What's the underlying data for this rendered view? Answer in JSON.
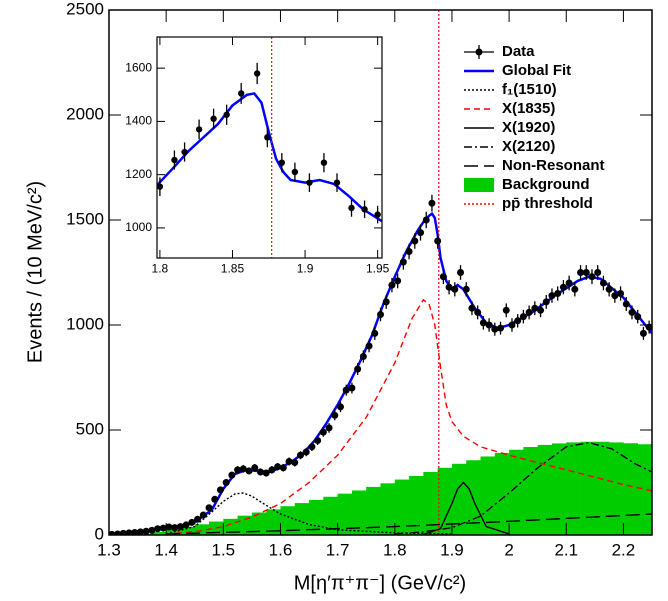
{
  "chart_data": [
    {
      "type": "line",
      "xlabel": "M[η′π⁺π⁻] (GeV/c²)",
      "ylabel": "Events / (10 MeV/c²)",
      "xlim": [
        1.3,
        2.25
      ],
      "ylim": [
        0,
        2500
      ],
      "xticks": [
        1.3,
        1.4,
        1.5,
        1.6,
        1.7,
        1.8,
        1.9,
        2,
        2.1,
        2.2
      ],
      "yticks": [
        0,
        500,
        1000,
        1500,
        2000,
        2500
      ],
      "legend": "upper right",
      "series": [
        {
          "name": "Data",
          "mark": "points",
          "color": "#000000",
          "x": [
            1.305,
            1.315,
            1.325,
            1.335,
            1.345,
            1.355,
            1.365,
            1.375,
            1.385,
            1.395,
            1.405,
            1.415,
            1.425,
            1.435,
            1.445,
            1.455,
            1.465,
            1.475,
            1.485,
            1.495,
            1.505,
            1.515,
            1.525,
            1.535,
            1.545,
            1.555,
            1.565,
            1.575,
            1.585,
            1.595,
            1.605,
            1.615,
            1.625,
            1.635,
            1.645,
            1.655,
            1.665,
            1.675,
            1.685,
            1.695,
            1.705,
            1.715,
            1.725,
            1.735,
            1.745,
            1.755,
            1.765,
            1.775,
            1.785,
            1.795,
            1.805,
            1.815,
            1.825,
            1.835,
            1.845,
            1.855,
            1.865,
            1.875,
            1.885,
            1.895,
            1.905,
            1.915,
            1.925,
            1.935,
            1.945,
            1.955,
            1.965,
            1.975,
            1.985,
            1.995,
            2.005,
            2.015,
            2.025,
            2.035,
            2.045,
            2.055,
            2.065,
            2.075,
            2.085,
            2.095,
            2.105,
            2.115,
            2.125,
            2.135,
            2.145,
            2.155,
            2.165,
            2.175,
            2.185,
            2.195,
            2.205,
            2.215,
            2.225,
            2.235,
            2.245
          ],
          "values": [
            3,
            5,
            8,
            10,
            12,
            15,
            18,
            22,
            30,
            33,
            38,
            35,
            40,
            48,
            60,
            75,
            95,
            130,
            170,
            215,
            250,
            285,
            310,
            315,
            305,
            320,
            300,
            295,
            310,
            325,
            320,
            350,
            345,
            380,
            395,
            420,
            450,
            490,
            510,
            570,
            610,
            690,
            700,
            790,
            850,
            900,
            960,
            1050,
            1110,
            1190,
            1210,
            1300,
            1350,
            1400,
            1440,
            1500,
            1580,
            1400,
            1230,
            1180,
            1170,
            1250,
            1170,
            1080,
            1060,
            1010,
            1000,
            980,
            985,
            1070,
            1000,
            1020,
            1040,
            1060,
            1080,
            1070,
            1110,
            1140,
            1150,
            1180,
            1200,
            1170,
            1250,
            1250,
            1230,
            1250,
            1200,
            1170,
            1140,
            1150,
            1100,
            1060,
            1040,
            960,
            990
          ],
          "errors": [
            2,
            2,
            3,
            3,
            3,
            4,
            4,
            5,
            5,
            6,
            6,
            6,
            6,
            7,
            8,
            9,
            10,
            11,
            13,
            15,
            16,
            17,
            18,
            18,
            17,
            18,
            17,
            17,
            18,
            18,
            18,
            19,
            19,
            19,
            20,
            20,
            21,
            22,
            23,
            24,
            25,
            26,
            26,
            28,
            29,
            30,
            31,
            32,
            33,
            34,
            35,
            36,
            37,
            37,
            38,
            39,
            40,
            37,
            35,
            34,
            34,
            35,
            34,
            33,
            33,
            32,
            32,
            31,
            31,
            33,
            32,
            32,
            32,
            33,
            33,
            33,
            33,
            34,
            34,
            34,
            35,
            34,
            35,
            35,
            35,
            35,
            35,
            34,
            34,
            34,
            33,
            33,
            32,
            31,
            31
          ]
        },
        {
          "name": "Global Fit",
          "mark": "line",
          "color": "#0000ff",
          "dash": "solid",
          "x": [
            1.3,
            1.35,
            1.4,
            1.45,
            1.48,
            1.5,
            1.52,
            1.54,
            1.56,
            1.58,
            1.6,
            1.62,
            1.64,
            1.66,
            1.68,
            1.7,
            1.72,
            1.74,
            1.76,
            1.78,
            1.8,
            1.82,
            1.84,
            1.85,
            1.86,
            1.865,
            1.87,
            1.875,
            1.88,
            1.89,
            1.9,
            1.91,
            1.92,
            1.94,
            1.96,
            1.98,
            2.0,
            2.04,
            2.08,
            2.12,
            2.14,
            2.16,
            2.2,
            2.25
          ],
          "values": [
            5,
            15,
            30,
            60,
            120,
            220,
            290,
            310,
            305,
            300,
            320,
            350,
            390,
            450,
            530,
            620,
            720,
            830,
            950,
            1100,
            1230,
            1350,
            1450,
            1490,
            1520,
            1530,
            1510,
            1430,
            1320,
            1210,
            1170,
            1190,
            1170,
            1080,
            1010,
            985,
            1000,
            1060,
            1140,
            1210,
            1230,
            1220,
            1130,
            960
          ]
        },
        {
          "name": "f₁(1510)",
          "mark": "line",
          "color": "#000000",
          "dash": "dotted",
          "x": [
            1.4,
            1.45,
            1.48,
            1.5,
            1.52,
            1.535,
            1.55,
            1.57,
            1.6,
            1.65,
            1.7,
            1.8,
            1.9
          ],
          "values": [
            5,
            40,
            110,
            160,
            195,
            200,
            185,
            150,
            100,
            50,
            25,
            10,
            5
          ]
        },
        {
          "name": "X(1835)",
          "mark": "line",
          "color": "#ff0000",
          "dash": "dashed",
          "x": [
            1.4,
            1.45,
            1.5,
            1.55,
            1.6,
            1.65,
            1.7,
            1.75,
            1.8,
            1.83,
            1.85,
            1.86,
            1.87,
            1.88,
            1.89,
            1.9,
            1.92,
            1.95,
            2.0,
            2.1,
            2.2,
            2.25
          ],
          "values": [
            5,
            15,
            40,
            85,
            150,
            250,
            380,
            560,
            820,
            1030,
            1120,
            1100,
            1000,
            800,
            620,
            540,
            470,
            420,
            380,
            310,
            240,
            210
          ]
        },
        {
          "name": "X(1920)",
          "mark": "line",
          "color": "#000000",
          "dash": "solid",
          "x": [
            1.85,
            1.88,
            1.9,
            1.91,
            1.92,
            1.93,
            1.94,
            1.96,
            2.0
          ],
          "values": [
            3,
            30,
            150,
            220,
            250,
            220,
            150,
            40,
            5
          ]
        },
        {
          "name": "X(2120)",
          "mark": "line",
          "color": "#000000",
          "dash": "dashdot",
          "x": [
            1.8,
            1.85,
            1.9,
            1.95,
            2.0,
            2.05,
            2.1,
            2.14,
            2.18,
            2.22,
            2.25
          ],
          "values": [
            5,
            15,
            35,
            90,
            200,
            320,
            420,
            440,
            410,
            340,
            300
          ]
        },
        {
          "name": "Non-Resonant",
          "mark": "line",
          "color": "#000000",
          "dash": "longdash",
          "x": [
            1.4,
            1.6,
            1.8,
            2.0,
            2.25
          ],
          "values": [
            5,
            20,
            40,
            65,
            100
          ]
        },
        {
          "name": "Background",
          "mark": "hist",
          "color": "#00cc00",
          "bins": [
            1.3,
            1.325,
            1.35,
            1.375,
            1.4,
            1.425,
            1.45,
            1.475,
            1.5,
            1.525,
            1.55,
            1.575,
            1.6,
            1.625,
            1.65,
            1.675,
            1.7,
            1.725,
            1.75,
            1.775,
            1.8,
            1.825,
            1.85,
            1.875,
            1.9,
            1.925,
            1.95,
            1.975,
            2.0,
            2.025,
            2.05,
            2.075,
            2.1,
            2.125,
            2.15,
            2.175,
            2.2,
            2.225,
            2.25
          ],
          "values": [
            1,
            2,
            6,
            15,
            26,
            39,
            51,
            64,
            77,
            92,
            107,
            122,
            137,
            152,
            167,
            182,
            197,
            212,
            229,
            246,
            264,
            281,
            300,
            320,
            339,
            356,
            374,
            391,
            406,
            419,
            429,
            436,
            441,
            444,
            444,
            441,
            437,
            432
          ]
        },
        {
          "name": "pp̄ threshold",
          "mark": "vline",
          "color": "#ff0000",
          "dash": "dotted",
          "x": 1.877
        }
      ]
    },
    {
      "type": "line",
      "xlim": [
        1.798,
        1.953
      ],
      "ylim": [
        887,
        1717
      ],
      "xticks": [
        1.8,
        1.85,
        1.9,
        1.95
      ],
      "yticks": [
        1000,
        1200,
        1400,
        1600
      ],
      "series": [
        {
          "mark": "points",
          "color": "#000000",
          "x": [
            1.8,
            1.81,
            1.817,
            1.827,
            1.837,
            1.846,
            1.856,
            1.867,
            1.874,
            1.884,
            1.893,
            1.903,
            1.913,
            1.922,
            1.932,
            1.941,
            1.95
          ],
          "values": [
            1155,
            1255,
            1285,
            1370,
            1410,
            1425,
            1505,
            1580,
            1340,
            1245,
            1210,
            1170,
            1245,
            1170,
            1075,
            1070,
            1050
          ],
          "errors": [
            35,
            36,
            36,
            37,
            38,
            38,
            39,
            40,
            37,
            36,
            35,
            35,
            36,
            35,
            33,
            33,
            33
          ]
        },
        {
          "mark": "line",
          "color": "#0000ff",
          "dash": "solid",
          "x": [
            1.798,
            1.81,
            1.82,
            1.83,
            1.84,
            1.85,
            1.86,
            1.865,
            1.87,
            1.875,
            1.88,
            1.885,
            1.89,
            1.9,
            1.91,
            1.92,
            1.93,
            1.94,
            1.953
          ],
          "values": [
            1160,
            1230,
            1290,
            1340,
            1390,
            1460,
            1500,
            1505,
            1470,
            1360,
            1260,
            1210,
            1180,
            1170,
            1180,
            1165,
            1120,
            1070,
            1025
          ]
        },
        {
          "mark": "vline",
          "color": "#ff0000",
          "dash": "dotted",
          "x": 1.877
        }
      ]
    }
  ]
}
